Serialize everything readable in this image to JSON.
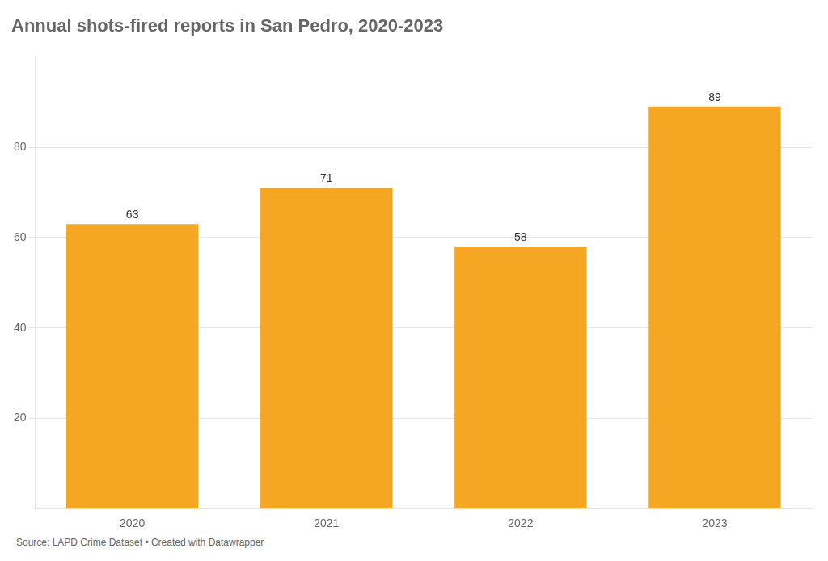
{
  "chart_data": {
    "type": "bar",
    "title": "Annual shots-fired reports in San Pedro, 2020-2023",
    "categories": [
      "2020",
      "2021",
      "2022",
      "2023"
    ],
    "values": [
      63,
      71,
      58,
      89
    ],
    "color": "#F5A623",
    "ylim": [
      0,
      100
    ],
    "yticks": [
      20,
      40,
      60,
      80
    ],
    "grid": true,
    "data_labels": true,
    "caption": "Source: LAPD Crime Dataset • Created with Datawrapper"
  }
}
